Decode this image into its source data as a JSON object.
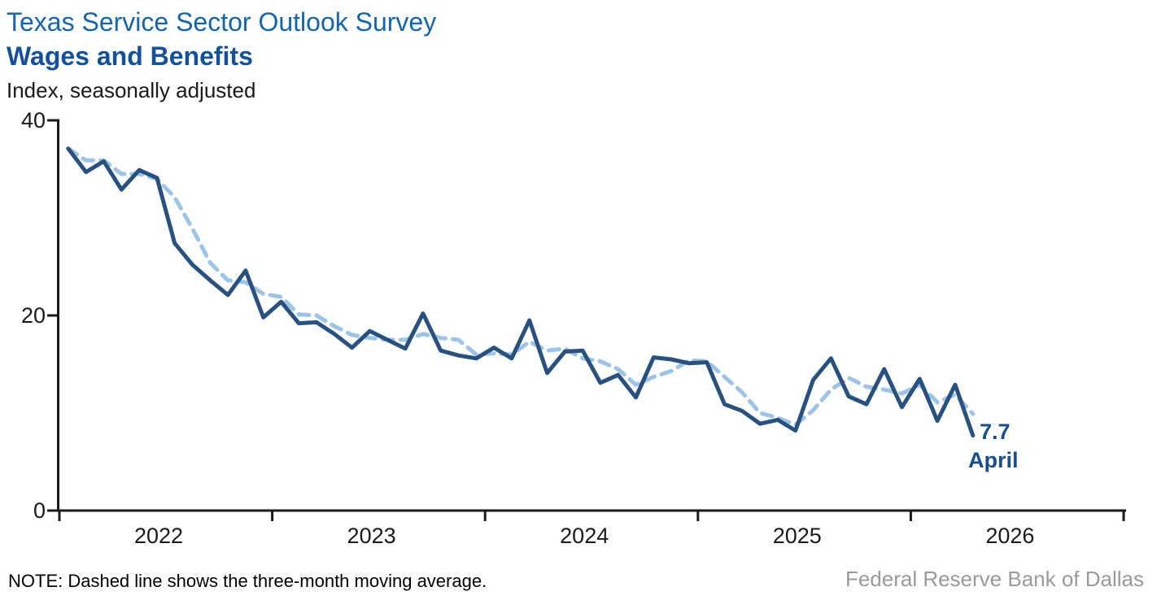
{
  "header": {
    "title": "Texas Service Sector Outlook Survey",
    "subtitle": "Wages and Benefits",
    "unit_label": "Index, seasonally adjusted"
  },
  "annotation": {
    "value": "7.7",
    "month": "April"
  },
  "footer": {
    "note": "NOTE: Dashed line shows the three-month moving average.",
    "source": "Federal Reserve Bank of Dallas"
  },
  "colors": {
    "title": "#1565AC",
    "subtitle": "#14519A",
    "axis": "#1A1A1A",
    "line_solid": "#28517F",
    "line_dashed": "#9DC3E6",
    "annotation": "#1A4E8A",
    "source_text": "#9A9A9A"
  },
  "chart_data": {
    "type": "line",
    "title": "Texas Service Sector Outlook Survey — Wages and Benefits",
    "ylabel": "Index, seasonally adjusted",
    "ylim": [
      0,
      40
    ],
    "y_ticks": [
      0,
      20,
      40
    ],
    "x_tick_years": [
      "2022",
      "2023",
      "2024",
      "2025",
      "2026"
    ],
    "grid": false,
    "legend_position": "none",
    "months": [
      "Jan 2022",
      "Feb 2022",
      "Mar 2022",
      "Apr 2022",
      "May 2022",
      "Jun 2022",
      "Jul 2022",
      "Aug 2022",
      "Sep 2022",
      "Oct 2022",
      "Nov 2022",
      "Dec 2022",
      "Jan 2023",
      "Feb 2023",
      "Mar 2023",
      "Apr 2023",
      "May 2023",
      "Jun 2023",
      "Jul 2023",
      "Aug 2023",
      "Sep 2023",
      "Oct 2023",
      "Nov 2023",
      "Dec 2023",
      "Jan 2024",
      "Feb 2024",
      "Mar 2024",
      "Apr 2024",
      "May 2024",
      "Jun 2024",
      "Jul 2024",
      "Aug 2024",
      "Sep 2024",
      "Oct 2024",
      "Nov 2024",
      "Dec 2024",
      "Jan 2025",
      "Feb 2025",
      "Mar 2025",
      "Apr 2025",
      "May 2025",
      "Jun 2025",
      "Jul 2025",
      "Aug 2025",
      "Sep 2025",
      "Oct 2025",
      "Nov 2025",
      "Dec 2025",
      "Jan 2026",
      "Feb 2026",
      "Mar 2026",
      "Apr 2026"
    ],
    "series": [
      {
        "name": "Wages and benefits index",
        "style": "solid",
        "values": [
          37.1,
          34.7,
          35.8,
          32.9,
          34.9,
          34.1,
          27.4,
          25.2,
          23.6,
          22.1,
          24.6,
          19.8,
          21.4,
          19.2,
          19.3,
          18.1,
          16.7,
          18.4,
          17.5,
          16.6,
          20.2,
          16.4,
          15.9,
          15.6,
          16.7,
          15.6,
          19.5,
          14.1,
          16.3,
          16.4,
          13.1,
          13.9,
          11.6,
          15.7,
          15.5,
          15.1,
          15.2,
          10.9,
          10.2,
          8.9,
          9.3,
          8.2,
          13.4,
          15.6,
          11.7,
          10.9,
          14.5,
          10.6,
          13.5,
          9.2,
          12.9,
          7.7
        ]
      },
      {
        "name": "Three-month moving average",
        "style": "dashed",
        "values": [
          37.1,
          35.9,
          35.9,
          34.5,
          34.5,
          34.0,
          32.1,
          28.9,
          25.4,
          23.6,
          23.4,
          22.2,
          21.9,
          20.1,
          20.0,
          18.9,
          18.0,
          17.7,
          17.5,
          17.5,
          18.1,
          17.7,
          17.5,
          16.0,
          16.1,
          16.0,
          17.3,
          16.4,
          16.6,
          15.6,
          15.3,
          14.5,
          12.9,
          13.7,
          14.3,
          15.4,
          15.3,
          13.7,
          12.1,
          10.0,
          9.5,
          8.8,
          10.3,
          12.4,
          13.6,
          12.7,
          12.4,
          12.0,
          12.9,
          11.1,
          11.9,
          9.9
        ]
      }
    ],
    "last_point": {
      "month": "April",
      "year": 2026,
      "value": 7.7
    }
  }
}
